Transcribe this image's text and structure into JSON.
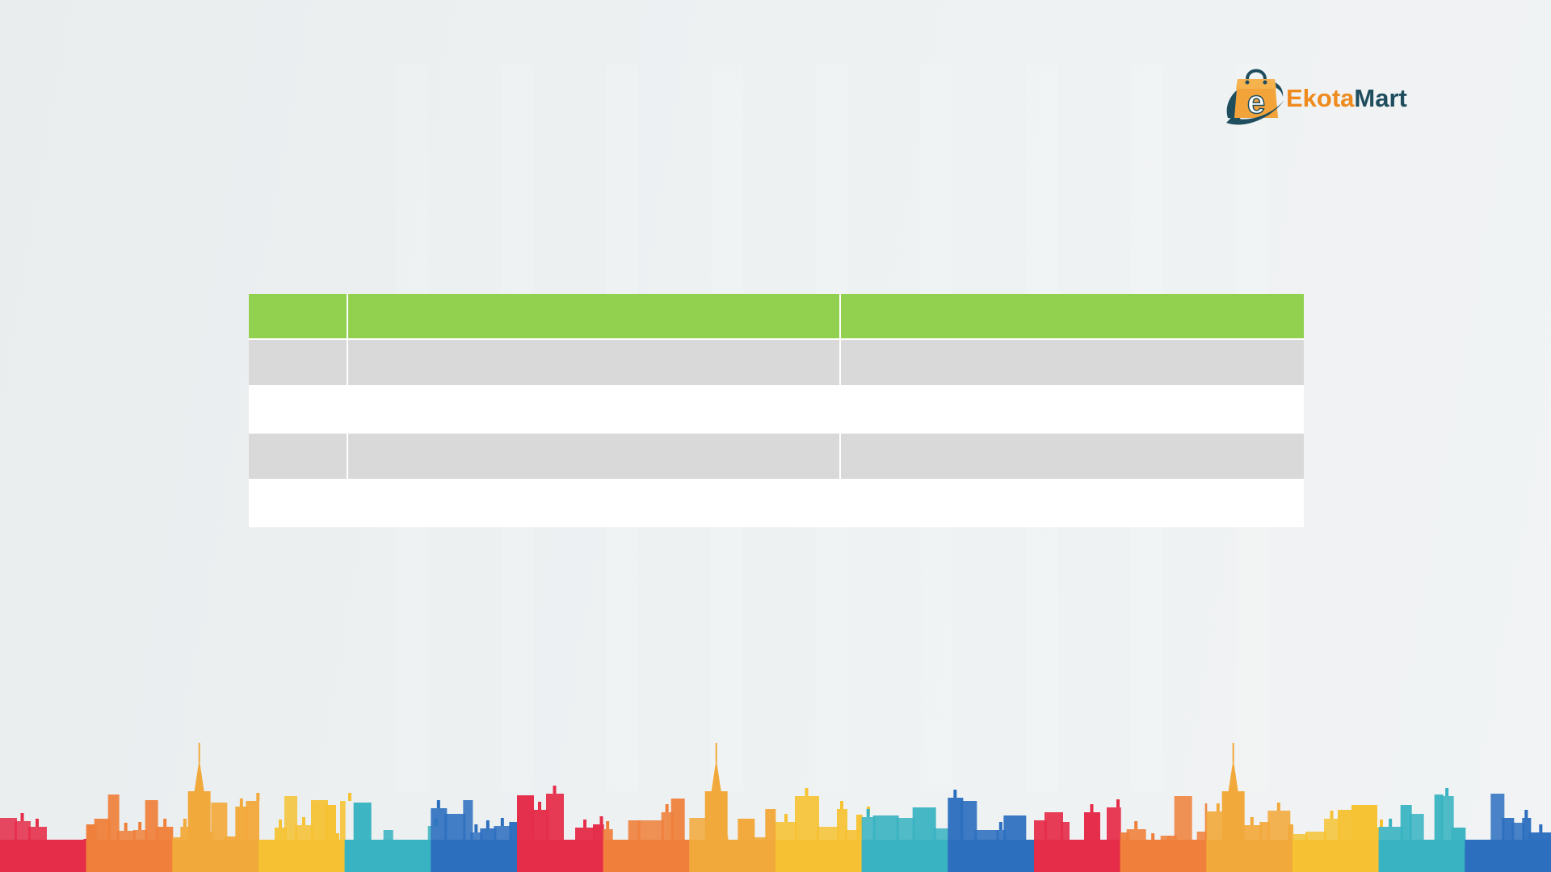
{
  "logo": {
    "text_part1": "Ekota",
    "text_part2": "Mart",
    "mark_letter": "e"
  },
  "table": {
    "rows": [
      {
        "type": "header",
        "cells": [
          "",
          "",
          ""
        ]
      },
      {
        "type": "band",
        "cells": [
          "",
          "",
          ""
        ]
      },
      {
        "type": "plain",
        "cells": [
          "",
          "",
          ""
        ]
      },
      {
        "type": "band",
        "cells": [
          "",
          "",
          ""
        ]
      },
      {
        "type": "plain",
        "cells": [
          "",
          "",
          ""
        ]
      }
    ]
  },
  "colors": {
    "header_green": "#92d050",
    "band_gray": "#d9d9d9",
    "brand_orange": "#ef8a1c",
    "brand_teal": "#1f4d5e",
    "skyline": [
      "#e52d4a",
      "#ef7f3a",
      "#f2a93b",
      "#f6c233",
      "#39b3c1",
      "#2d6fbf"
    ]
  }
}
